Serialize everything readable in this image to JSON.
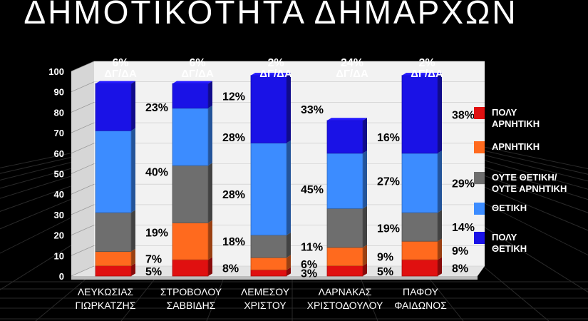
{
  "title": "ΔΗΜΟΤΙΚΟΤΗΤΑ ΔΗΜΑΡΧΩΝ",
  "colors": {
    "very_negative": "#e01010",
    "negative": "#ff6a1e",
    "neutral": "#6e6e6e",
    "positive": "#3c8cff",
    "very_positive": "#1a12e6"
  },
  "chart_data": {
    "type": "bar",
    "stacked": true,
    "title": "ΔΗΜΟΤΙΚΟΤΗΤΑ ΔΗΜΑΡΧΩΝ",
    "ylim": [
      0,
      100
    ],
    "yticks": [
      "0",
      "10",
      "20",
      "30",
      "40",
      "50",
      "60",
      "70",
      "80",
      "90",
      "100"
    ],
    "grid": true,
    "legend_position": "right",
    "categories": [
      [
        "ΛΕΥΚΩΣΙΑΣ",
        "ΓΙΩΡΚΑΤΖΗΣ"
      ],
      [
        "ΣΤΡΟΒΟΛΟΥ",
        "ΣΑΒΒΙΔΗΣ"
      ],
      [
        "ΛΕΜΕΣΟΥ",
        "ΧΡΙΣΤΟΥ"
      ],
      [
        "ΛΑΡΝΑΚΑΣ",
        "ΧΡΙΣΤΟΔΟΥΛΟΥ"
      ],
      [
        "ΠΑΦΟΥ",
        "ΦΑΙΔΩΝΟΣ"
      ]
    ],
    "dk_na": [
      [
        "6%",
        "ΔΓ/ΔΑ"
      ],
      [
        "6%",
        "ΔΓ/ΔΑ"
      ],
      [
        "2%",
        "ΔΓ/ΔΑ"
      ],
      [
        "24%",
        "ΔΓ/ΔΑ"
      ],
      [
        "2%",
        "ΔΓ/ΔΑ"
      ]
    ],
    "series": [
      {
        "name": "ΠΟΛΥ ΑΡΝΗΤΙΚΗ",
        "legend": [
          "ΠΟΛΥ",
          "ΑΡΝΗΤΙΚΗ"
        ],
        "color_key": "very_negative",
        "values": [
          5,
          8,
          3,
          5,
          8
        ]
      },
      {
        "name": "ΑΡΝΗΤΙΚΗ",
        "legend": [
          "ΑΡΝΗΤΙΚΗ"
        ],
        "color_key": "negative",
        "values": [
          7,
          18,
          6,
          9,
          9
        ]
      },
      {
        "name": "ΟΥΤΕ ΘΕΤΙΚΗ/ ΟΥΤΕ ΑΡΝΗΤΙΚΗ",
        "legend": [
          "ΟΥΤΕ ΘΕΤΙΚΗ/",
          "ΟΥΤΕ ΑΡΝΗΤΙΚΗ"
        ],
        "color_key": "neutral",
        "values": [
          19,
          28,
          11,
          19,
          14
        ]
      },
      {
        "name": "ΘΕΤΙΚΗ",
        "legend": [
          "ΘΕΤΙΚΗ"
        ],
        "color_key": "positive",
        "values": [
          40,
          28,
          45,
          27,
          29
        ]
      },
      {
        "name": "ΠΟΛΥ ΘΕΤΙΚΗ",
        "legend": [
          "ΠΟΛΥ",
          "ΘΕΤΙΚΗ"
        ],
        "color_key": "very_positive",
        "values": [
          23,
          12,
          33,
          16,
          38
        ]
      }
    ],
    "data_labels": [
      [
        "5%",
        "7%",
        "19%",
        "40%",
        "23%"
      ],
      [
        "8%",
        "18%",
        "28%",
        "28%",
        "12%"
      ],
      [
        "3%",
        "6%",
        "11%",
        "45%",
        "33%"
      ],
      [
        "5%",
        "9%",
        "19%",
        "27%",
        "16%"
      ],
      [
        "8%",
        "9%",
        "14%",
        "29%",
        "38%"
      ]
    ]
  }
}
